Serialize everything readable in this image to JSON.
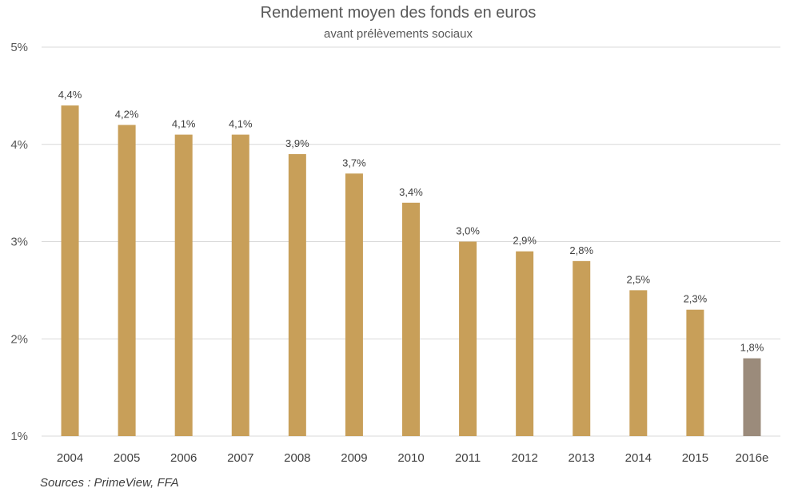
{
  "chart_data": {
    "type": "bar",
    "title": "Rendement moyen des fonds en euros",
    "subtitle": "avant prélèvements  sociaux",
    "categories": [
      "2004",
      "2005",
      "2006",
      "2007",
      "2008",
      "2009",
      "2010",
      "2011",
      "2012",
      "2013",
      "2014",
      "2015",
      "2016e"
    ],
    "values": [
      4.4,
      4.2,
      4.1,
      4.1,
      3.9,
      3.7,
      3.4,
      3.0,
      2.9,
      2.8,
      2.5,
      2.3,
      1.8
    ],
    "data_labels": [
      "4,4%",
      "4,2%",
      "4,1%",
      "4,1%",
      "3,9%",
      "3,7%",
      "3,4%",
      "3,0%",
      "2,9%",
      "2,8%",
      "2,5%",
      "2,3%",
      "1,8%"
    ],
    "ylim": [
      1,
      5
    ],
    "yticks": [
      1,
      2,
      3,
      4,
      5
    ],
    "ytick_labels": [
      "1%",
      "2%",
      "3%",
      "4%",
      "5%"
    ],
    "xlabel": "",
    "ylabel": "",
    "grid": true,
    "colors": {
      "bar": "#c89f59",
      "bar_estimate": "#9b8b7b"
    },
    "estimate_category": "2016e",
    "source": "Sources : PrimeView, FFA"
  }
}
